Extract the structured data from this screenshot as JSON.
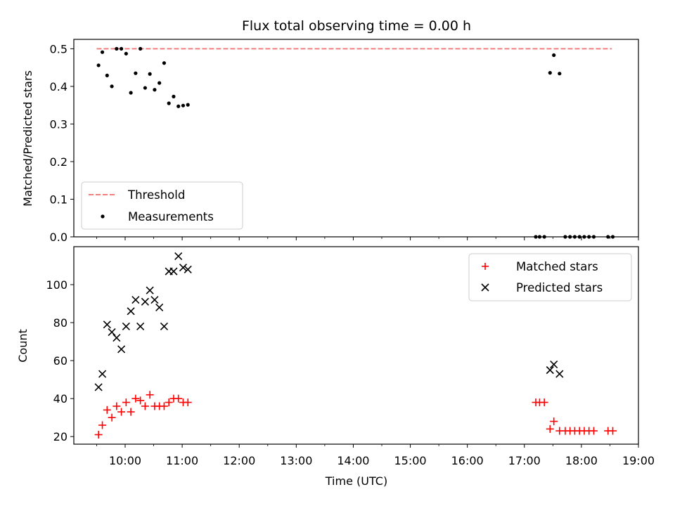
{
  "chart_data": [
    {
      "type": "scatter",
      "title": "Flux total observing time = 0.00 h",
      "xlabel": "",
      "ylabel": "Matched/Predicted stars",
      "xlim": [
        "09:06",
        "19:00"
      ],
      "ylim": [
        0,
        0.525
      ],
      "yticks": [
        0.0,
        0.1,
        0.2,
        0.3,
        0.4,
        0.5
      ],
      "ytick_labels": [
        "0.0",
        "0.1",
        "0.2",
        "0.3",
        "0.4",
        "0.5"
      ],
      "grid": false,
      "legend": {
        "placement": "lower-left",
        "entries": [
          "Threshold",
          "Measurements"
        ]
      },
      "series": [
        {
          "name": "Threshold",
          "kind": "dashed-line",
          "color": "#f08080",
          "points": [
            [
              "09:30",
              0.5
            ],
            [
              "18:32",
              0.5
            ]
          ]
        },
        {
          "name": "Measurements",
          "kind": "dots",
          "color": "#000000",
          "points": [
            [
              "09:32",
              0.456
            ],
            [
              "09:36",
              0.491
            ],
            [
              "09:41",
              0.429
            ],
            [
              "09:46",
              0.4
            ],
            [
              "09:51",
              0.5
            ],
            [
              "09:56",
              0.5
            ],
            [
              "10:01",
              0.487
            ],
            [
              "10:06",
              0.383
            ],
            [
              "10:11",
              0.435
            ],
            [
              "10:16",
              0.5
            ],
            [
              "10:21",
              0.396
            ],
            [
              "10:26",
              0.433
            ],
            [
              "10:31",
              0.391
            ],
            [
              "10:36",
              0.409
            ],
            [
              "10:41",
              0.462
            ],
            [
              "10:46",
              0.355
            ],
            [
              "10:51",
              0.373
            ],
            [
              "10:56",
              0.347
            ],
            [
              "11:01",
              0.349
            ],
            [
              "11:06",
              0.351
            ],
            [
              "17:12",
              0.0
            ],
            [
              "17:16",
              0.0
            ],
            [
              "17:21",
              0.0
            ],
            [
              "17:27",
              0.436
            ],
            [
              "17:31",
              0.483
            ],
            [
              "17:37",
              0.434
            ],
            [
              "17:43",
              0.0
            ],
            [
              "17:48",
              0.0
            ],
            [
              "17:53",
              0.0
            ],
            [
              "17:58",
              0.0
            ],
            [
              "18:03",
              0.0
            ],
            [
              "18:08",
              0.0
            ],
            [
              "18:13",
              0.0
            ],
            [
              "18:28",
              0.0
            ],
            [
              "18:33",
              0.0
            ]
          ]
        }
      ]
    },
    {
      "type": "scatter",
      "title": "",
      "xlabel": "Time (UTC)",
      "ylabel": "Count",
      "xlim": [
        "09:06",
        "19:00"
      ],
      "ylim": [
        16,
        120
      ],
      "yticks": [
        20,
        40,
        60,
        80,
        100
      ],
      "ytick_labels": [
        "20",
        "40",
        "60",
        "80",
        "100"
      ],
      "xticks": [
        "10:00",
        "11:00",
        "12:00",
        "13:00",
        "14:00",
        "15:00",
        "16:00",
        "17:00",
        "18:00",
        "19:00"
      ],
      "grid": false,
      "legend": {
        "placement": "top-right",
        "entries": [
          "Matched stars",
          "Predicted stars"
        ]
      },
      "series": [
        {
          "name": "Matched stars",
          "marker": "plus",
          "color": "#ff0000",
          "points": [
            [
              "09:32",
              21
            ],
            [
              "09:36",
              26
            ],
            [
              "09:41",
              34
            ],
            [
              "09:46",
              30
            ],
            [
              "09:51",
              36
            ],
            [
              "09:56",
              33
            ],
            [
              "10:01",
              38
            ],
            [
              "10:06",
              33
            ],
            [
              "10:11",
              40
            ],
            [
              "10:16",
              39
            ],
            [
              "10:21",
              36
            ],
            [
              "10:26",
              42
            ],
            [
              "10:31",
              36
            ],
            [
              "10:36",
              36
            ],
            [
              "10:41",
              36
            ],
            [
              "10:46",
              38
            ],
            [
              "10:51",
              40
            ],
            [
              "10:56",
              40
            ],
            [
              "11:01",
              38
            ],
            [
              "11:06",
              38
            ],
            [
              "17:12",
              38
            ],
            [
              "17:16",
              38
            ],
            [
              "17:21",
              38
            ],
            [
              "17:27",
              24
            ],
            [
              "17:31",
              28
            ],
            [
              "17:37",
              23
            ],
            [
              "17:43",
              23
            ],
            [
              "17:48",
              23
            ],
            [
              "17:53",
              23
            ],
            [
              "17:58",
              23
            ],
            [
              "18:03",
              23
            ],
            [
              "18:08",
              23
            ],
            [
              "18:13",
              23
            ],
            [
              "18:28",
              23
            ],
            [
              "18:33",
              23
            ]
          ]
        },
        {
          "name": "Predicted stars",
          "marker": "x",
          "color": "#000000",
          "points": [
            [
              "09:32",
              46
            ],
            [
              "09:36",
              53
            ],
            [
              "09:41",
              79
            ],
            [
              "09:46",
              75
            ],
            [
              "09:51",
              72
            ],
            [
              "09:56",
              66
            ],
            [
              "10:01",
              78
            ],
            [
              "10:06",
              86
            ],
            [
              "10:11",
              92
            ],
            [
              "10:16",
              78
            ],
            [
              "10:21",
              91
            ],
            [
              "10:26",
              97
            ],
            [
              "10:31",
              92
            ],
            [
              "10:36",
              88
            ],
            [
              "10:41",
              78
            ],
            [
              "10:46",
              107
            ],
            [
              "10:51",
              107
            ],
            [
              "10:56",
              115
            ],
            [
              "11:01",
              109
            ],
            [
              "11:06",
              108
            ],
            [
              "17:27",
              55
            ],
            [
              "17:31",
              58
            ],
            [
              "17:37",
              53
            ]
          ]
        }
      ]
    }
  ]
}
